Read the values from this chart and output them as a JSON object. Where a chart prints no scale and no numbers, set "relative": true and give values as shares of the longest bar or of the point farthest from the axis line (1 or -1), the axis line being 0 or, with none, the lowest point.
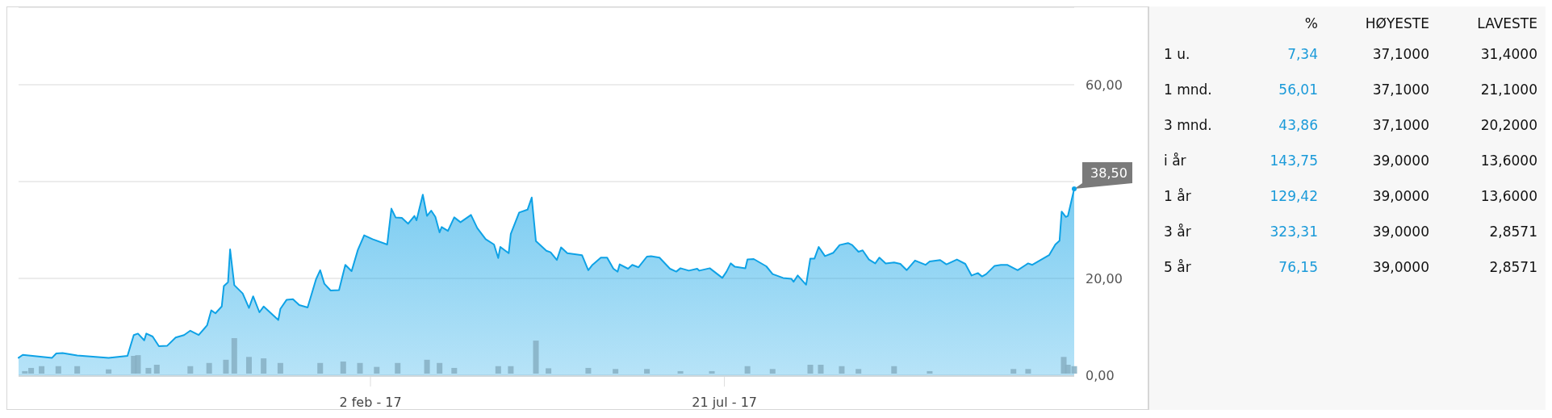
{
  "chart_data": [
    {
      "type": "area",
      "color": "#0ea2e6",
      "xlim": [
        "2016-08-18",
        "2018-01-04"
      ],
      "ylim": [
        0,
        76
      ],
      "grid": "y",
      "yticks": [
        {
          "value": 0,
          "label": "0,00"
        },
        {
          "value": 20,
          "label": "20,00"
        },
        {
          "value": 40,
          "label": null
        },
        {
          "value": 60,
          "label": "60,00"
        }
      ],
      "xticks": [
        {
          "value": "2017-02-02",
          "label": "2 feb - 17"
        },
        {
          "value": "2017-07-21",
          "label": "21 jul - 17"
        }
      ],
      "annotations": [
        {
          "text": "38,50",
          "x": "2018-01-04",
          "y": 38.5
        }
      ],
      "x": [
        "2016-08-18",
        "2016-08-20",
        "2016-09-03",
        "2016-09-05",
        "2016-09-08",
        "2016-09-15",
        "2016-09-30",
        "2016-10-09",
        "2016-10-12",
        "2016-10-14",
        "2016-10-17",
        "2016-10-18",
        "2016-10-21",
        "2016-10-24",
        "2016-10-28",
        "2016-11-01",
        "2016-11-05",
        "2016-11-08",
        "2016-11-12",
        "2016-11-16",
        "2016-11-18",
        "2016-11-20",
        "2016-11-23",
        "2016-11-24",
        "2016-11-26",
        "2016-11-27",
        "2016-11-29",
        "2016-12-03",
        "2016-12-06",
        "2016-12-08",
        "2016-12-11",
        "2016-12-13",
        "2016-12-20",
        "2016-12-21",
        "2016-12-24",
        "2016-12-27",
        "2016-12-30",
        "2017-01-03",
        "2017-01-07",
        "2017-01-09",
        "2017-01-11",
        "2017-01-14",
        "2017-01-18",
        "2017-01-21",
        "2017-01-24",
        "2017-01-27",
        "2017-01-30",
        "2017-02-03",
        "2017-02-10",
        "2017-02-12",
        "2017-02-14",
        "2017-02-17",
        "2017-02-20",
        "2017-02-23",
        "2017-02-24",
        "2017-02-27",
        "2017-03-01",
        "2017-03-03",
        "2017-03-05",
        "2017-03-07",
        "2017-03-08",
        "2017-03-11",
        "2017-03-14",
        "2017-03-17",
        "2017-03-22",
        "2017-03-25",
        "2017-03-29",
        "2017-04-02",
        "2017-04-04",
        "2017-04-05",
        "2017-04-09",
        "2017-04-10",
        "2017-04-14",
        "2017-04-18",
        "2017-04-20",
        "2017-04-22",
        "2017-04-27",
        "2017-04-29",
        "2017-05-02",
        "2017-05-04",
        "2017-05-07",
        "2017-05-14",
        "2017-05-17",
        "2017-05-19",
        "2017-05-23",
        "2017-05-26",
        "2017-05-29",
        "2017-05-31",
        "2017-06-01",
        "2017-06-05",
        "2017-06-07",
        "2017-06-10",
        "2017-06-14",
        "2017-06-16",
        "2017-06-20",
        "2017-06-25",
        "2017-06-28",
        "2017-06-30",
        "2017-07-04",
        "2017-07-08",
        "2017-07-09",
        "2017-07-14",
        "2017-07-20",
        "2017-07-22",
        "2017-07-24",
        "2017-07-26",
        "2017-07-31",
        "2017-08-01",
        "2017-08-04",
        "2017-08-10",
        "2017-08-13",
        "2017-08-18",
        "2017-08-22",
        "2017-08-23",
        "2017-08-25",
        "2017-08-29",
        "2017-08-31",
        "2017-09-02",
        "2017-09-04",
        "2017-09-07",
        "2017-09-11",
        "2017-09-14",
        "2017-09-18",
        "2017-09-20",
        "2017-09-23",
        "2017-09-25",
        "2017-09-28",
        "2017-10-01",
        "2017-10-03",
        "2017-10-06",
        "2017-10-10",
        "2017-10-13",
        "2017-10-16",
        "2017-10-20",
        "2017-10-25",
        "2017-10-27",
        "2017-11-01",
        "2017-11-04",
        "2017-11-09",
        "2017-11-13",
        "2017-11-16",
        "2017-11-19",
        "2017-11-21",
        "2017-11-23",
        "2017-11-27",
        "2017-11-30",
        "2017-12-03",
        "2017-12-08",
        "2017-12-13",
        "2017-12-15",
        "2017-12-19",
        "2017-12-23",
        "2017-12-26",
        "2017-12-28",
        "2017-12-29",
        "2017-12-31",
        "2018-01-01",
        "2018-01-04"
      ],
      "values": [
        3.6,
        4.2,
        3.6,
        4.5,
        4.6,
        4.1,
        3.6,
        4.0,
        8.3,
        8.6,
        7.2,
        8.6,
        8.0,
        6.0,
        6.1,
        7.8,
        8.3,
        9.2,
        8.3,
        10.3,
        13.4,
        12.8,
        14.2,
        18.4,
        19.2,
        26.0,
        18.6,
        16.9,
        13.9,
        16.3,
        13.0,
        14.2,
        11.4,
        13.7,
        15.6,
        15.7,
        14.5,
        14.0,
        19.8,
        21.7,
        18.9,
        17.5,
        17.6,
        22.8,
        21.5,
        25.9,
        28.9,
        28.1,
        27.0,
        34.4,
        32.6,
        32.5,
        31.3,
        32.9,
        32.0,
        37.3,
        32.9,
        34.0,
        32.7,
        29.5,
        30.6,
        29.8,
        32.6,
        31.6,
        33.1,
        30.4,
        28.1,
        27.0,
        24.2,
        26.5,
        25.2,
        29.2,
        33.6,
        34.2,
        36.7,
        27.7,
        25.7,
        25.4,
        23.8,
        26.4,
        25.2,
        24.8,
        21.7,
        22.8,
        24.3,
        24.3,
        22.0,
        21.4,
        22.9,
        22.0,
        22.8,
        22.3,
        24.5,
        24.6,
        24.3,
        22.0,
        21.4,
        22.1,
        21.6,
        22.0,
        21.6,
        22.1,
        20.1,
        21.4,
        23.1,
        22.4,
        22.1,
        23.9,
        24.0,
        22.5,
        20.9,
        20.1,
        19.9,
        19.3,
        20.6,
        18.7,
        24.1,
        24.1,
        26.5,
        24.6,
        25.3,
        26.9,
        27.3,
        26.9,
        25.5,
        25.8,
        23.9,
        23.1,
        24.3,
        23.1,
        23.3,
        23.0,
        21.7,
        23.7,
        22.8,
        23.5,
        23.8,
        22.9,
        23.9,
        23.0,
        20.6,
        21.1,
        20.4,
        20.9,
        22.6,
        22.8,
        22.8,
        21.7,
        23.1,
        22.8,
        23.8,
        24.8,
        27.0,
        27.8,
        33.8,
        32.7,
        32.9,
        38.5
      ]
    },
    {
      "type": "bar",
      "relative": true,
      "color": "#86afc3",
      "xlim": [
        "2016-08-18",
        "2018-01-04"
      ],
      "x": [
        "2016-08-21",
        "2016-08-24",
        "2016-08-29",
        "2016-09-06",
        "2016-09-15",
        "2016-09-30",
        "2016-10-12",
        "2016-10-14",
        "2016-10-19",
        "2016-10-23",
        "2016-11-08",
        "2016-11-17",
        "2016-11-25",
        "2016-11-29",
        "2016-12-06",
        "2016-12-13",
        "2016-12-21",
        "2017-01-09",
        "2017-01-20",
        "2017-01-28",
        "2017-02-05",
        "2017-02-15",
        "2017-03-01",
        "2017-03-07",
        "2017-03-14",
        "2017-04-04",
        "2017-04-10",
        "2017-04-22",
        "2017-04-28",
        "2017-05-17",
        "2017-05-30",
        "2017-06-14",
        "2017-06-30",
        "2017-07-15",
        "2017-08-01",
        "2017-08-13",
        "2017-08-31",
        "2017-09-05",
        "2017-09-15",
        "2017-09-23",
        "2017-10-10",
        "2017-10-27",
        "2017-12-06",
        "2017-12-13",
        "2017-12-30",
        "2018-01-01",
        "2018-01-04"
      ],
      "values": [
        0.07,
        0.16,
        0.21,
        0.21,
        0.21,
        0.12,
        0.5,
        0.52,
        0.16,
        0.25,
        0.21,
        0.3,
        0.39,
        1,
        0.47,
        0.43,
        0.3,
        0.3,
        0.34,
        0.3,
        0.19,
        0.3,
        0.39,
        0.3,
        0.16,
        0.21,
        0.21,
        0.93,
        0.15,
        0.16,
        0.13,
        0.13,
        0.07,
        0.07,
        0.21,
        0.13,
        0.25,
        0.25,
        0.21,
        0.13,
        0.21,
        0.07,
        0.13,
        0.13,
        0.47,
        0.25,
        0.21
      ]
    },
    {
      "type": "other",
      "categories": [
        "%",
        "HØYESTE",
        "LAVESTE"
      ],
      "y_categories": [
        "1 u.",
        "1 mnd.",
        "3 mnd.",
        "i år",
        "1 år",
        "3 år",
        "5 år"
      ],
      "colors": [
        "#1a9ad9",
        "#111111",
        "#111111"
      ],
      "cell_labels": [
        [
          "7,34",
          "37,1000",
          "31,4000"
        ],
        [
          "56,01",
          "37,1000",
          "21,1000"
        ],
        [
          "43,86",
          "37,1000",
          "20,2000"
        ],
        [
          "143,75",
          "39,0000",
          "13,6000"
        ],
        [
          "129,42",
          "39,0000",
          "13,6000"
        ],
        [
          "323,31",
          "39,0000",
          "2,8571"
        ],
        [
          "76,15",
          "39,0000",
          "2,8571"
        ]
      ]
    }
  ]
}
